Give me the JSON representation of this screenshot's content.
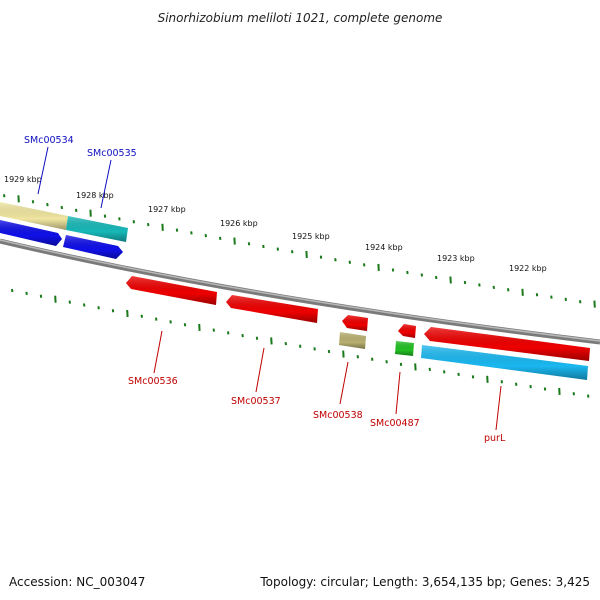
{
  "title": "Sinorhizobium meliloti 1021, complete genome",
  "accession": "Accession: NC_003047",
  "summary": "Topology: circular; Length: 3,654,135 bp; Genes: 3,425",
  "colors": {
    "backbone": "#8a8a8a",
    "tick": "#1a7a1a",
    "label_forward": "#1010c0",
    "label_reverse": "#c00000",
    "gene_red": "#ee0000",
    "gene_blue": "#1010e8",
    "gene_cyan": "#18b8b8",
    "gene_khaki": "#b8b070",
    "gene_pale_yellow": "#f0e6a0",
    "gene_green": "#22c022",
    "gene_sky": "#1ab8f0"
  },
  "scale_labels": [
    "1929 kbp",
    "1928 kbp",
    "1927 kbp",
    "1926 kbp",
    "1925 kbp",
    "1924 kbp",
    "1923 kbp",
    "1922 kbp"
  ],
  "genes": [
    {
      "id": "pale-forward-1",
      "color": "gene_pale_yellow",
      "label": ""
    },
    {
      "id": "cyan-forward",
      "color": "gene_cyan",
      "label": ""
    },
    {
      "id": "blue-forward-1",
      "color": "gene_blue",
      "label": "SMc00534"
    },
    {
      "id": "blue-forward-2",
      "color": "gene_blue",
      "label": "SMc00535"
    },
    {
      "id": "red-reverse-1",
      "color": "gene_red",
      "label": "SMc00536"
    },
    {
      "id": "red-reverse-2",
      "color": "gene_red",
      "label": "SMc00537"
    },
    {
      "id": "red-reverse-3",
      "color": "gene_red",
      "label": ""
    },
    {
      "id": "khaki-reverse",
      "color": "gene_khaki",
      "label": "SMc00538"
    },
    {
      "id": "red-reverse-4",
      "color": "gene_red",
      "label": ""
    },
    {
      "id": "green-reverse",
      "color": "gene_green",
      "label": "SMc00487"
    },
    {
      "id": "red-reverse-5",
      "color": "gene_red",
      "label": ""
    },
    {
      "id": "sky-reverse",
      "color": "gene_sky",
      "label": "purL"
    }
  ]
}
